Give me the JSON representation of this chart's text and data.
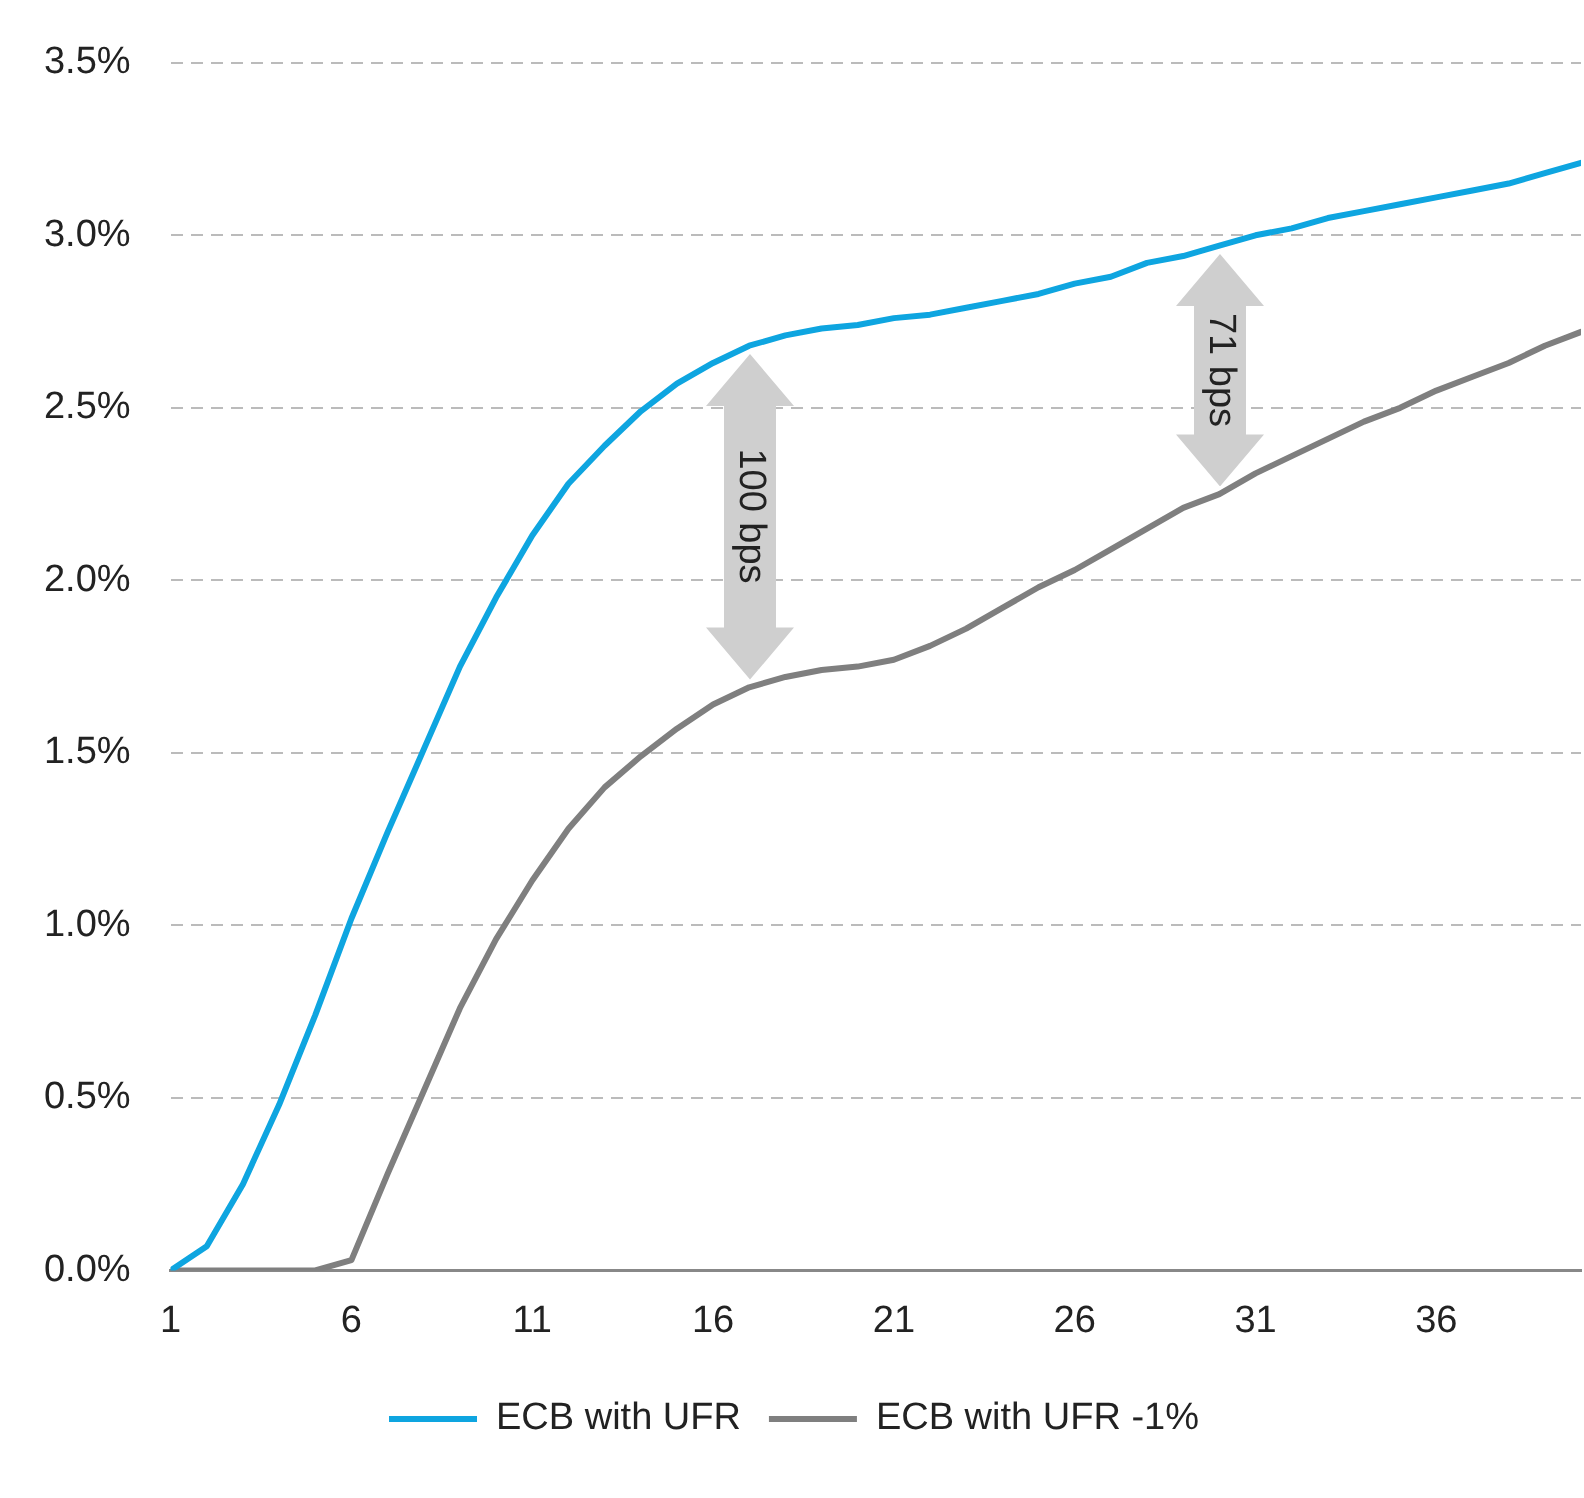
{
  "chart_data": {
    "type": "line",
    "x": [
      1,
      2,
      3,
      4,
      5,
      6,
      7,
      8,
      9,
      10,
      11,
      12,
      13,
      14,
      15,
      16,
      17,
      18,
      19,
      20,
      21,
      22,
      23,
      24,
      25,
      26,
      27,
      28,
      29,
      30,
      31,
      32,
      33,
      34,
      35,
      36,
      37,
      38,
      39,
      40
    ],
    "xlim": [
      1,
      40
    ],
    "xticks": [
      1,
      6,
      11,
      16,
      21,
      26,
      31,
      36
    ],
    "series": [
      {
        "name": "ECB with UFR",
        "color": "#0ea5e0",
        "values": [
          0,
          0.07,
          0.25,
          0.48,
          0.74,
          1.02,
          1.27,
          1.51,
          1.75,
          1.95,
          2.13,
          2.28,
          2.39,
          2.49,
          2.57,
          2.63,
          2.68,
          2.71,
          2.73,
          2.74,
          2.76,
          2.77,
          2.79,
          2.81,
          2.83,
          2.86,
          2.88,
          2.92,
          2.94,
          2.97,
          3.0,
          3.02,
          3.05,
          3.07,
          3.09,
          3.11,
          3.13,
          3.15,
          3.18,
          3.21
        ]
      },
      {
        "name": "ECB with UFR -1%",
        "color": "#7f7f7f",
        "values": [
          0,
          0,
          0,
          0,
          0,
          0.03,
          0.28,
          0.52,
          0.76,
          0.96,
          1.13,
          1.28,
          1.4,
          1.49,
          1.57,
          1.64,
          1.69,
          1.72,
          1.74,
          1.75,
          1.77,
          1.81,
          1.86,
          1.92,
          1.98,
          2.03,
          2.09,
          2.15,
          2.21,
          2.25,
          2.31,
          2.36,
          2.41,
          2.46,
          2.5,
          2.55,
          2.59,
          2.63,
          2.68,
          2.72
        ]
      }
    ],
    "ylim": [
      0,
      3.5
    ],
    "yticks": [
      {
        "value": 0,
        "label": "0.0%"
      },
      {
        "value": 0.5,
        "label": "0.5%"
      },
      {
        "value": 1,
        "label": "1.0%"
      },
      {
        "value": 1.5,
        "label": "1.5%"
      },
      {
        "value": 2,
        "label": "2.0%"
      },
      {
        "value": 2.5,
        "label": "2.5%"
      },
      {
        "value": 3,
        "label": "3.0%"
      },
      {
        "value": 3.5,
        "label": "3.5%"
      }
    ],
    "grid": "y",
    "legend": "bottom",
    "marker": "none",
    "line_style": "solid",
    "annotations": [
      "100 bps",
      "71 bps"
    ]
  }
}
